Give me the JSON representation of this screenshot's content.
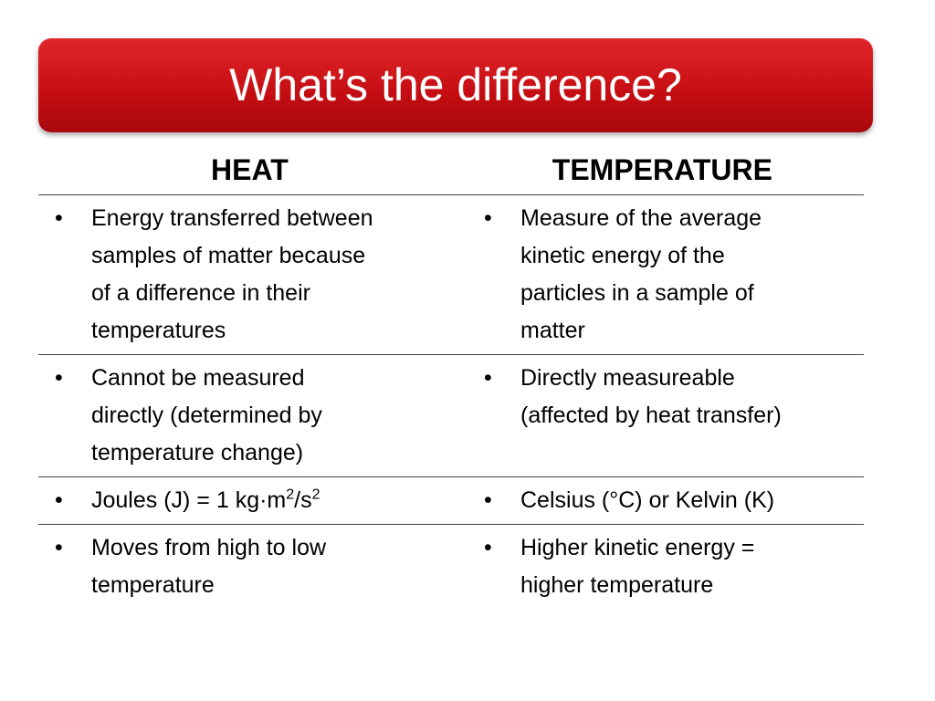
{
  "title": "What’s the difference?",
  "table": {
    "headers": [
      "HEAT",
      "TEMPERATURE"
    ],
    "rows": [
      [
        {
          "lines": [
            "Energy transferred between",
            "samples of matter because",
            "of a difference in their",
            "temperatures"
          ]
        },
        {
          "lines": [
            "Measure of the average",
            "kinetic energy of the",
            "particles in a sample of",
            "matter"
          ]
        }
      ],
      [
        {
          "lines": [
            "Cannot be measured",
            "directly (determined by",
            "temperature change)"
          ]
        },
        {
          "lines": [
            "Directly measureable",
            "(affected by heat transfer)"
          ]
        }
      ],
      [
        {
          "parts": [
            {
              "text": "Joules (J) = 1 kg·m"
            },
            {
              "sup": "2"
            },
            {
              "text": "/s"
            },
            {
              "sup": "2"
            }
          ]
        },
        {
          "lines": [
            "Celsius (°C) or Kelvin (K)"
          ]
        }
      ],
      [
        {
          "lines": [
            "Moves from high to low",
            "temperature"
          ]
        },
        {
          "lines": [
            "Higher kinetic energy =",
            "higher temperature"
          ]
        }
      ]
    ]
  }
}
